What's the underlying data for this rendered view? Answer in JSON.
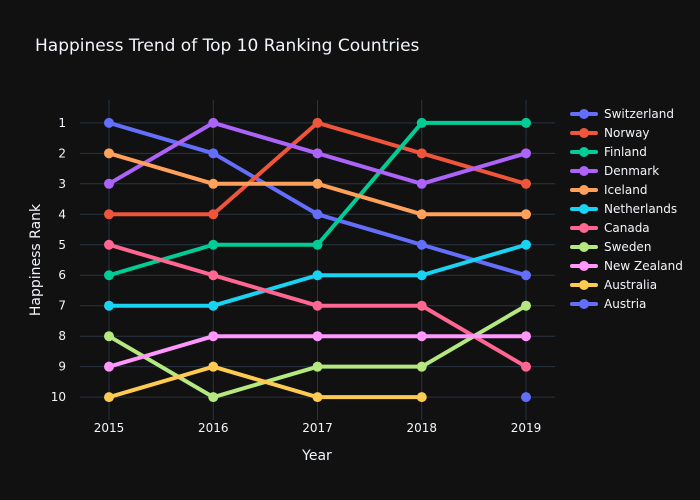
{
  "chart_data": {
    "type": "line",
    "title": "Happiness Trend of Top 10 Ranking Countries",
    "xlabel": "Year",
    "ylabel": "Happiness Rank",
    "x": [
      "2015",
      "2016",
      "2017",
      "2018",
      "2019"
    ],
    "yticks": [
      1,
      2,
      3,
      4,
      5,
      6,
      7,
      8,
      9,
      10
    ],
    "ylim": [
      10.75,
      0.25
    ],
    "y_reversed": true,
    "grid": true,
    "legend_position": "right",
    "series": [
      {
        "name": "Switzerland",
        "color": "#636efa",
        "values": [
          1,
          2,
          4,
          5,
          6
        ]
      },
      {
        "name": "Norway",
        "color": "#EF553B",
        "values": [
          4,
          4,
          1,
          2,
          3
        ]
      },
      {
        "name": "Finland",
        "color": "#00cc96",
        "values": [
          6,
          5,
          5,
          1,
          1
        ]
      },
      {
        "name": "Denmark",
        "color": "#ab63fa",
        "values": [
          3,
          1,
          2,
          3,
          2
        ]
      },
      {
        "name": "Iceland",
        "color": "#FFA15A",
        "values": [
          2,
          3,
          3,
          4,
          4
        ]
      },
      {
        "name": "Netherlands",
        "color": "#19d3f3",
        "values": [
          7,
          7,
          6,
          6,
          5
        ]
      },
      {
        "name": "Canada",
        "color": "#FF6692",
        "values": [
          5,
          6,
          7,
          7,
          9
        ]
      },
      {
        "name": "Sweden",
        "color": "#B6E880",
        "values": [
          8,
          10,
          9,
          9,
          7
        ]
      },
      {
        "name": "New Zealand",
        "color": "#FF97FF",
        "values": [
          9,
          8,
          8,
          8,
          8
        ]
      },
      {
        "name": "Australia",
        "color": "#FECB52",
        "values": [
          10,
          9,
          10,
          10,
          null
        ]
      },
      {
        "name": "Austria",
        "color": "#636efa",
        "values": [
          null,
          null,
          null,
          null,
          10
        ]
      }
    ]
  }
}
